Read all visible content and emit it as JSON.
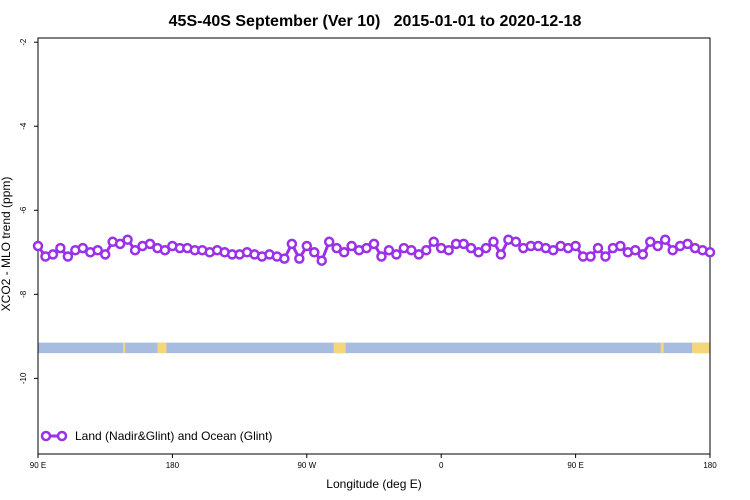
{
  "chart_data": {
    "type": "line",
    "title": "45S-40S September (Ver 10)   2015-01-01 to 2020-12-18",
    "xlabel": "Longitude (deg E)",
    "ylabel": "XCO2 - MLO trend (ppm)",
    "x_ticks": [
      {
        "pos": 0,
        "label": "90 E"
      },
      {
        "pos": 90,
        "label": "180"
      },
      {
        "pos": 180,
        "label": "90 W"
      },
      {
        "pos": 270,
        "label": "0"
      },
      {
        "pos": 360,
        "label": "90 E"
      },
      {
        "pos": 450,
        "label": "180"
      }
    ],
    "xlim": [
      0,
      450
    ],
    "ylim": [
      -11.8,
      -1.9
    ],
    "y_ticks": [
      -2,
      -4,
      -6,
      -8,
      -10
    ],
    "grid": false,
    "legend_position": "bottom-left",
    "colors": {
      "series": "#9b30e8",
      "ocean": "#a7bde0",
      "land": "#f5d77a"
    },
    "series": [
      {
        "name": "Land (Nadir&Glint) and Ocean (Glint)",
        "step": 5,
        "values": [
          -6.85,
          -7.1,
          -7.05,
          -6.9,
          -7.1,
          -6.95,
          -6.9,
          -7.0,
          -6.95,
          -7.05,
          -6.75,
          -6.8,
          -6.7,
          -6.95,
          -6.85,
          -6.8,
          -6.9,
          -6.95,
          -6.85,
          -6.9,
          -6.9,
          -6.95,
          -6.95,
          -7.0,
          -6.95,
          -7.0,
          -7.05,
          -7.05,
          -7.0,
          -7.05,
          -7.1,
          -7.05,
          -7.1,
          -7.15,
          -6.8,
          -7.15,
          -6.85,
          -7.0,
          -7.2,
          -6.75,
          -6.9,
          -7.0,
          -6.85,
          -6.95,
          -6.9,
          -6.8,
          -7.1,
          -6.95,
          -7.05,
          -6.9,
          -6.95,
          -7.05,
          -6.95,
          -6.75,
          -6.9,
          -6.95,
          -6.8,
          -6.8,
          -6.9,
          -7.0,
          -6.9,
          -6.75,
          -7.05,
          -6.7,
          -6.75,
          -6.9,
          -6.85,
          -6.85,
          -6.9,
          -6.95,
          -6.85,
          -6.9,
          -6.85,
          -7.1,
          -7.1,
          -6.9,
          -7.1,
          -6.9,
          -6.85,
          -7.0,
          -6.95,
          -7.05,
          -6.75,
          -6.85,
          -6.7,
          -6.95,
          -6.85,
          -6.8,
          -6.9,
          -6.95,
          -7.0
        ]
      }
    ],
    "land_segments": [
      [
        57,
        58
      ],
      [
        80,
        86
      ],
      [
        198,
        206
      ],
      [
        417,
        419
      ],
      [
        438,
        450
      ]
    ],
    "surface_band_y": [
      -9.4,
      -9.15
    ]
  }
}
